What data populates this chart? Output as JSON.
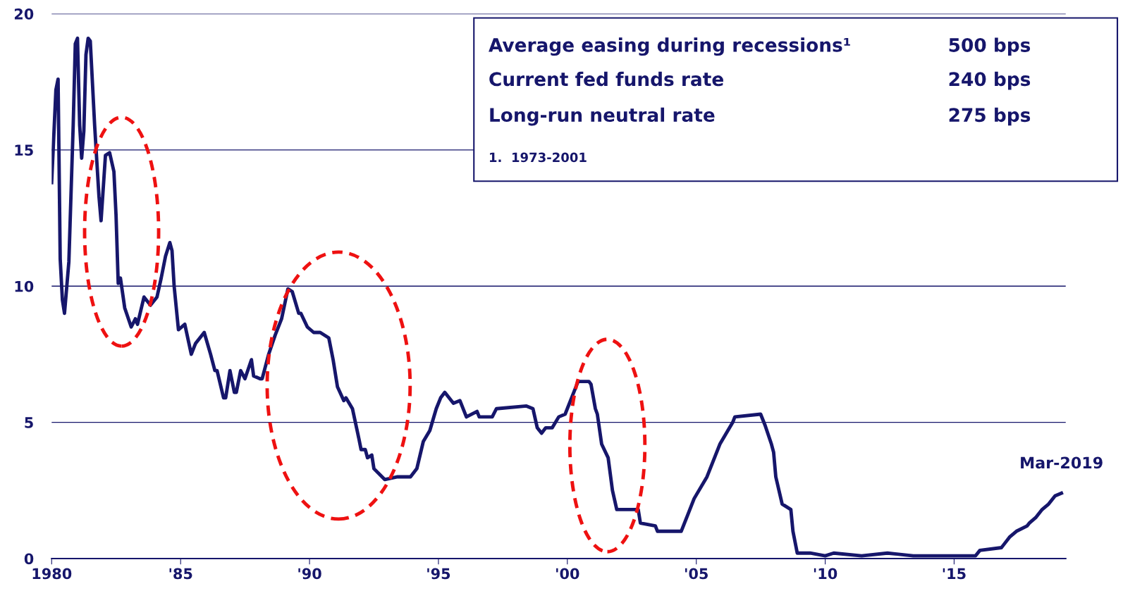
{
  "chart_data": {
    "type": "line",
    "x": [
      "1980-01",
      "1980-03",
      "1980-04",
      "1980-05",
      "1980-06",
      "1980-07",
      "1980-09",
      "1980-11",
      "1980-12",
      "1981-01",
      "1981-02",
      "1981-03",
      "1981-04",
      "1981-05",
      "1981-06",
      "1981-07",
      "1981-09",
      "1981-11",
      "1981-12",
      "1982-02",
      "1982-04",
      "1982-06",
      "1982-07",
      "1982-08",
      "1982-09",
      "1982-11",
      "1983-02",
      "1983-04",
      "1983-05",
      "1983-08",
      "1983-11",
      "1984-02",
      "1984-04",
      "1984-06",
      "1984-08",
      "1984-09",
      "1984-10",
      "1984-12",
      "1985-03",
      "1985-06",
      "1985-08",
      "1985-12",
      "1986-03",
      "1986-05",
      "1986-06",
      "1986-09",
      "1986-10",
      "1986-12",
      "1987-02",
      "1987-03",
      "1987-05",
      "1987-07",
      "1987-10",
      "1987-11",
      "1988-02",
      "1988-03",
      "1988-06",
      "1988-09",
      "1988-12",
      "1989-03",
      "1989-05",
      "1989-08",
      "1989-09",
      "1989-12",
      "1990-03",
      "1990-06",
      "1990-10",
      "1990-12",
      "1991-02",
      "1991-05",
      "1991-06",
      "1991-09",
      "1991-12",
      "1992-01",
      "1992-03",
      "1992-04",
      "1992-06",
      "1992-07",
      "1992-12",
      "1993-06",
      "1993-12",
      "1994-03",
      "1994-06",
      "1994-09",
      "1994-12",
      "1995-02",
      "1995-04",
      "1995-08",
      "1995-11",
      "1996-02",
      "1996-07",
      "1996-08",
      "1997-02",
      "1997-04",
      "1998-06",
      "1998-09",
      "1998-11",
      "1999-01",
      "1999-03",
      "1999-06",
      "1999-09",
      "1999-12",
      "2000-03",
      "2000-06",
      "2000-11",
      "2000-12",
      "2001-02",
      "2001-03",
      "2001-05",
      "2001-08",
      "2001-10",
      "2001-12",
      "2002-10",
      "2002-11",
      "2003-06",
      "2003-07",
      "2004-06",
      "2004-09",
      "2004-12",
      "2005-06",
      "2005-12",
      "2006-06",
      "2006-07",
      "2007-07",
      "2007-09",
      "2007-12",
      "2008-01",
      "2008-02",
      "2008-05",
      "2008-09",
      "2008-10",
      "2008-12",
      "2009-06",
      "2010-01",
      "2010-05",
      "2011-06",
      "2012-06",
      "2013-06",
      "2014-06",
      "2015-11",
      "2015-12",
      "2016-01",
      "2016-11",
      "2016-12",
      "2017-03",
      "2017-06",
      "2017-11",
      "2017-12",
      "2018-03",
      "2018-06",
      "2018-09",
      "2018-12",
      "2019-03"
    ],
    "series": [
      {
        "color": "#16166b",
        "values": [
          13.8,
          17.2,
          17.6,
          11.0,
          9.5,
          9.0,
          10.9,
          15.9,
          18.9,
          19.1,
          15.9,
          14.7,
          15.7,
          18.5,
          19.1,
          19.0,
          15.9,
          13.3,
          12.4,
          14.8,
          14.9,
          14.2,
          12.6,
          10.1,
          10.3,
          9.2,
          8.5,
          8.8,
          8.6,
          9.6,
          9.3,
          9.6,
          10.3,
          11.1,
          11.6,
          11.3,
          10.0,
          8.4,
          8.6,
          7.5,
          7.9,
          8.3,
          7.5,
          6.9,
          6.9,
          5.9,
          5.9,
          6.9,
          6.1,
          6.1,
          6.9,
          6.6,
          7.3,
          6.7,
          6.6,
          6.6,
          7.5,
          8.2,
          8.8,
          9.9,
          9.8,
          9.0,
          9.0,
          8.5,
          8.3,
          8.3,
          8.1,
          7.3,
          6.3,
          5.8,
          5.9,
          5.5,
          4.4,
          4.0,
          4.0,
          3.7,
          3.8,
          3.3,
          2.9,
          3.0,
          3.0,
          3.3,
          4.3,
          4.7,
          5.5,
          5.9,
          6.1,
          5.7,
          5.8,
          5.2,
          5.4,
          5.2,
          5.2,
          5.5,
          5.6,
          5.5,
          4.8,
          4.6,
          4.8,
          4.8,
          5.2,
          5.3,
          5.9,
          6.5,
          6.5,
          6.4,
          5.5,
          5.3,
          4.2,
          3.7,
          2.5,
          1.8,
          1.8,
          1.3,
          1.2,
          1.0,
          1.0,
          1.6,
          2.2,
          3.0,
          4.2,
          5.0,
          5.2,
          5.3,
          4.9,
          4.2,
          3.9,
          3.0,
          2.0,
          1.8,
          1.0,
          0.2,
          0.2,
          0.1,
          0.2,
          0.1,
          0.2,
          0.1,
          0.1,
          0.1,
          0.2,
          0.3,
          0.4,
          0.5,
          0.8,
          1.0,
          1.2,
          1.3,
          1.5,
          1.8,
          2.0,
          2.3,
          2.4
        ]
      }
    ],
    "xlim": [
      "1980-01",
      "2019-05"
    ],
    "xticks": [
      {
        "value": "1980-01",
        "label": "1980"
      },
      {
        "value": "1985-01",
        "label": "'85"
      },
      {
        "value": "1990-01",
        "label": "'90"
      },
      {
        "value": "1995-01",
        "label": "'95"
      },
      {
        "value": "2000-01",
        "label": "'00"
      },
      {
        "value": "2005-01",
        "label": "'05"
      },
      {
        "value": "2010-01",
        "label": "'10"
      },
      {
        "value": "2015-01",
        "label": "'15"
      }
    ],
    "ylim": [
      0,
      20
    ],
    "yticks": [
      0,
      5,
      10,
      15,
      20
    ],
    "grid": "y",
    "annotations": [
      "Average easing during recessions¹",
      "500 bps",
      "Current fed funds rate",
      "240 bps",
      "Long-run neutral rate",
      "275 bps",
      "1.  1973-2001",
      {
        "text": "Mar-2019",
        "x": "2019-03",
        "y": 2.4
      }
    ]
  }
}
